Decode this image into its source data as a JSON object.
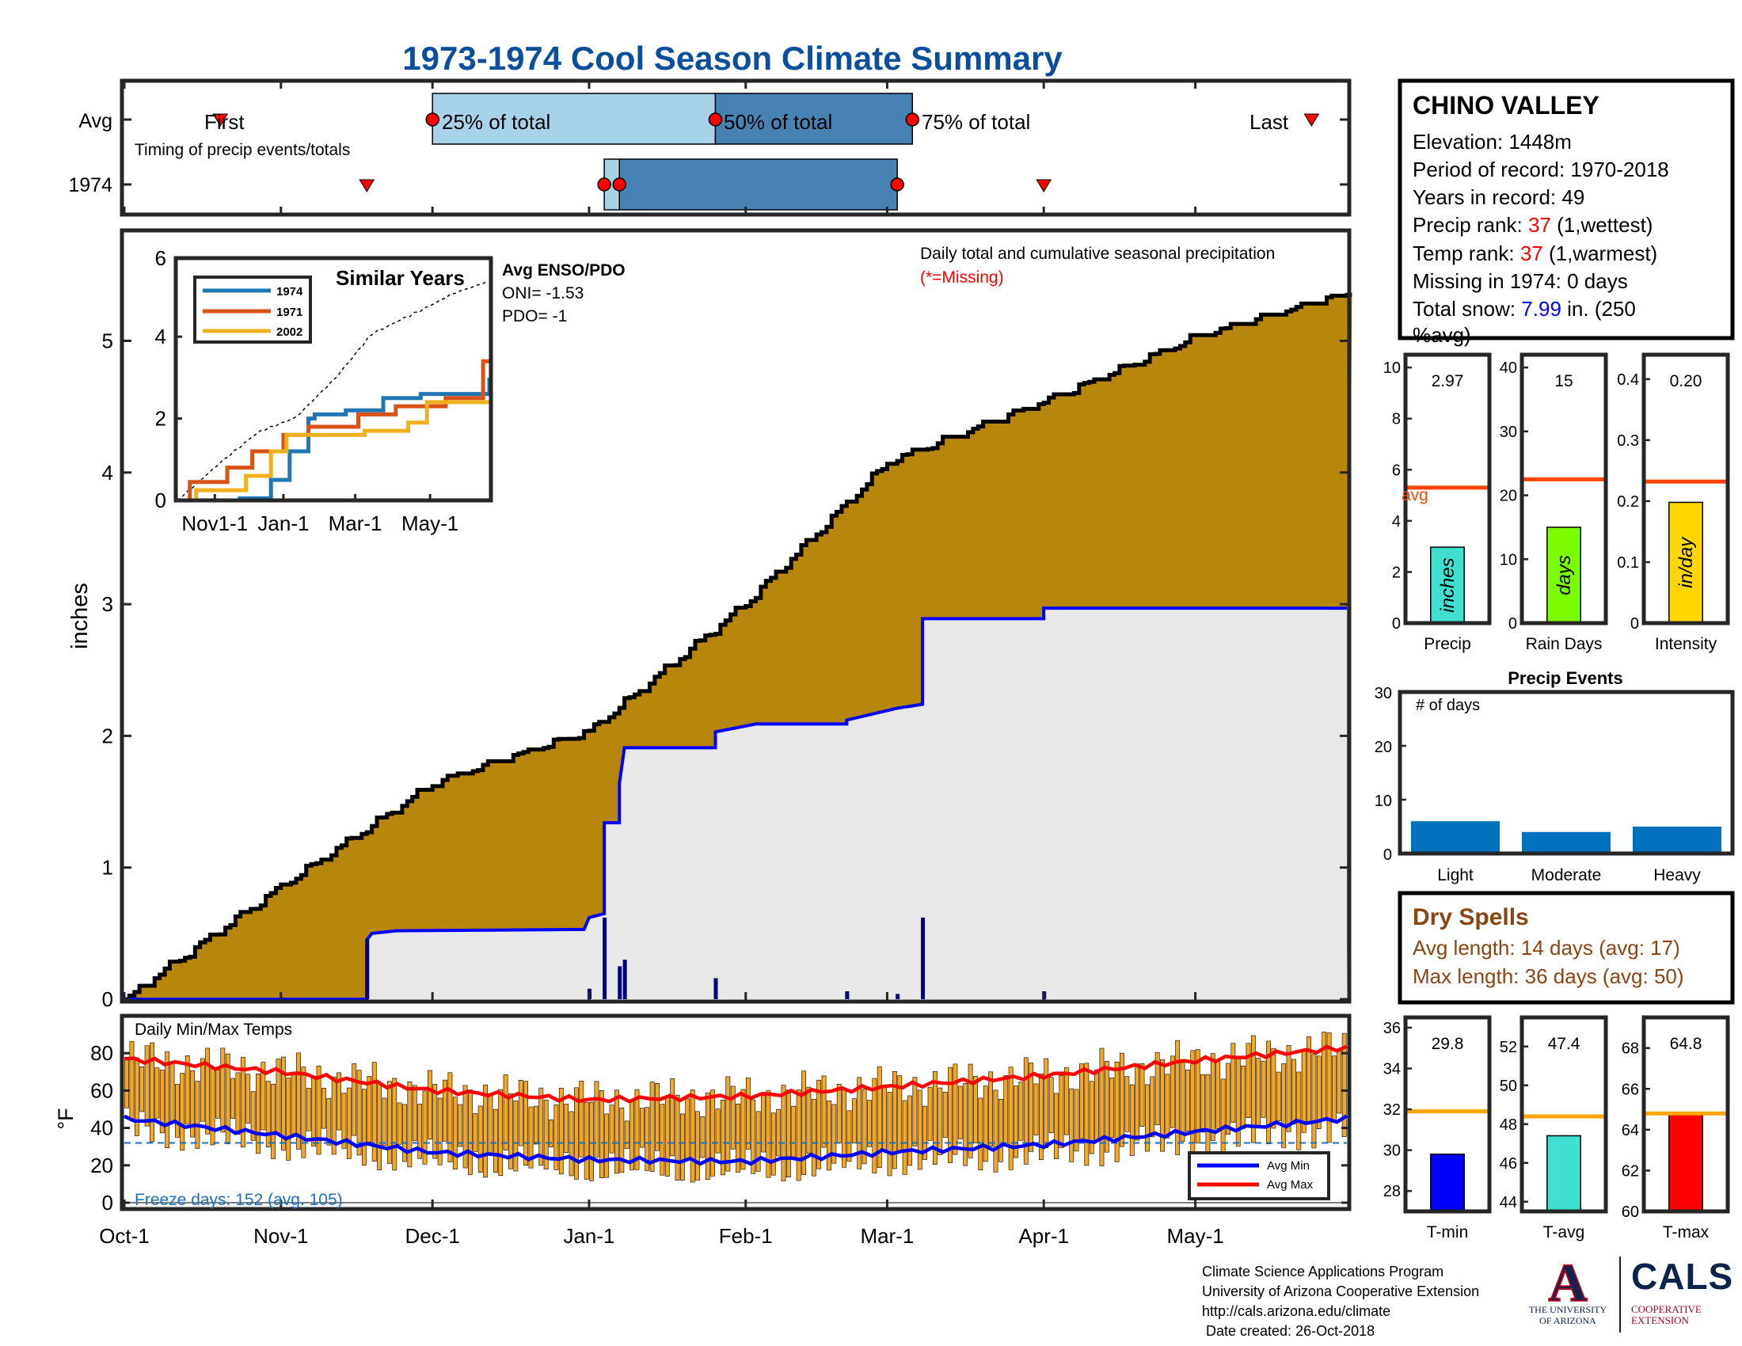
{
  "title": "1973-1974 Cool Season Climate Summary",
  "colors": {
    "title": "#0b4f9c",
    "precip_fill": "#b8860b",
    "avg_fill": "#e8e8e8",
    "avg_line": "#0000ff",
    "daily_bars": "#000080",
    "light_blue": "#a6d3e8",
    "dark_blue": "#4682b4",
    "marker_red": "#ff0000",
    "red_text": "#ff0000",
    "blue_text": "#0000ff",
    "dry_spells": "#8b4513",
    "temp_bars": "#f5a623",
    "avg_max": "#ff0000",
    "avg_min": "#0000ff",
    "freeze_line": "#1f6fbf",
    "avg_bar_line": "#ff4500",
    "temp_avg_line": "#ffa500"
  },
  "timing": {
    "row_labels": [
      "Avg",
      "1974"
    ],
    "subtitle": "Timing of precip events/totals",
    "avg_labels": [
      "First",
      "25% of total",
      "50% of total",
      "75% of total",
      "Last"
    ],
    "avg": {
      "first": "Oct-20",
      "p25": "Dec-01",
      "p50": "Jan-26",
      "p75": "Mar-06",
      "last": "May-24"
    },
    "y1974": {
      "first": "Nov-18",
      "p25": "Jan-04",
      "p50": "Jan-07",
      "p75": "Mar-03",
      "last": "Apr-01"
    }
  },
  "station": {
    "name": "CHINO VALLEY",
    "elevation_line": "Elevation: 1448m",
    "period_line": "Period of record: 1970-2018",
    "years_line": "Years in record: 49",
    "precip_rank_prefix": "Precip rank: ",
    "precip_rank_value": "37",
    "precip_rank_suffix": " (1,wettest)",
    "temp_rank_prefix": "Temp rank: ",
    "temp_rank_value": "37",
    "temp_rank_suffix": " (1,warmest)",
    "missing_line": "Missing in 1974: 0 days",
    "snow_prefix": "Total snow: ",
    "snow_value": "7.99",
    "snow_suffix": " in. (250",
    "snow_line2": "%avg)"
  },
  "main_chart": {
    "ylabel": "inches",
    "yticks": [
      0,
      1,
      2,
      3,
      4,
      5
    ],
    "ylim": [
      0,
      5.8
    ],
    "x_ticks": [
      "Oct-1",
      "Nov-1",
      "Dec-1",
      "Jan-1",
      "Feb-1",
      "Mar-1",
      "Apr-1",
      "May-1"
    ],
    "note": "Daily total and cumulative seasonal precipitation",
    "missing_note": "(*=Missing)"
  },
  "inset": {
    "title": "Similar Years",
    "legend": [
      "1974",
      "1971",
      "2002"
    ],
    "yticks": [
      0,
      2,
      4,
      6
    ],
    "xticks": [
      "Nov1-1",
      "Jan-1",
      "Mar-1",
      "May-1"
    ],
    "enso_title": "Avg ENSO/PDO",
    "oni": "ONI= -1.53",
    "pdo": "PDO= -1"
  },
  "temp_chart": {
    "title": "Daily Min/Max Temps",
    "ylabel": "°F",
    "yticks": [
      0,
      20,
      40,
      60,
      80
    ],
    "freeze_note": "Freeze days: 152 (avg. 105)",
    "legend": [
      "Avg Min",
      "Avg Max"
    ]
  },
  "precip_panels": [
    {
      "label": "Precip",
      "value_text": "2.97",
      "bar_label": "inches",
      "value": 2.97,
      "avg": 5.3,
      "ylim": [
        0,
        10.5
      ],
      "yticks": [
        0,
        2,
        4,
        6,
        8,
        10
      ],
      "color": "#40e0d0",
      "avg_text": "avg"
    },
    {
      "label": "Rain Days",
      "value_text": "15",
      "bar_label": "days",
      "value": 15,
      "avg": 22.5,
      "ylim": [
        0,
        42
      ],
      "yticks": [
        0,
        10,
        20,
        30,
        40
      ],
      "color": "#7cfc00"
    },
    {
      "label": "Intensity",
      "value_text": "0.20",
      "bar_label": "in/day",
      "value": 0.198,
      "avg": 0.232,
      "ylim": [
        0,
        0.44
      ],
      "yticks": [
        0,
        0.1,
        0.2,
        0.3,
        0.4
      ],
      "color": "#ffd700"
    }
  ],
  "precip_events": {
    "title": "Precip Events",
    "ylabel_note": "# of days",
    "categories": [
      "Light",
      "Moderate",
      "Heavy"
    ],
    "values": [
      6,
      4,
      5
    ],
    "yticks": [
      0,
      10,
      20,
      30
    ],
    "ylim": [
      0,
      30
    ]
  },
  "dry_spells": {
    "title": "Dry Spells",
    "avg_line": "Avg length: 14 days (avg: 17)",
    "max_line": "Max length: 36 days (avg: 50)"
  },
  "temp_panels": [
    {
      "label": "T-min",
      "value_text": "29.8",
      "value": 29.8,
      "avg": 31.9,
      "ylim": [
        27,
        36.5
      ],
      "yticks": [
        28,
        30,
        32,
        34,
        36
      ],
      "color": "#0000ff"
    },
    {
      "label": "T-avg",
      "value_text": "47.4",
      "value": 47.4,
      "avg": 48.4,
      "ylim": [
        43.5,
        53.5
      ],
      "yticks": [
        44,
        46,
        48,
        50,
        52
      ],
      "color": "#40e0d0"
    },
    {
      "label": "T-max",
      "value_text": "64.8",
      "value": 64.8,
      "avg": 64.8,
      "ylim": [
        60,
        69.5
      ],
      "yticks": [
        60,
        62,
        64,
        66,
        68
      ],
      "color": "#ff0000"
    }
  ],
  "footer": [
    "Climate Science Applications Program",
    "University of Arizona Cooperative Extension",
    "http://cals.arizona.edu/climate",
    " Date created: 26-Oct-2018"
  ],
  "logo": {
    "ua_line1": "THE UNIVERSITY",
    "ua_line2": "OF ARIZONA",
    "ua_letter": "A",
    "cals": "CALS",
    "cals_sub1": "COOPERATIVE",
    "cals_sub2": "EXTENSION"
  },
  "chart_data": [
    {
      "type": "area",
      "title": "Daily total and cumulative seasonal precipitation",
      "ylabel": "inches",
      "ylim": [
        0,
        5.8
      ],
      "x": [
        "Oct-1",
        "Nov-1",
        "Dec-1",
        "Jan-1",
        "Feb-1",
        "Mar-1",
        "Apr-1",
        "May-1",
        "May-31"
      ],
      "series": [
        {
          "name": "avg cumulative",
          "values": [
            0,
            0.85,
            1.63,
            2.03,
            3.0,
            4.07,
            4.53,
            5.02,
            5.35
          ]
        },
        {
          "name": "1974 cumulative",
          "values": [
            0,
            0,
            0.52,
            0.53,
            2.09,
            2.24,
            2.96,
            2.97,
            2.97
          ]
        }
      ],
      "daily_1974": [
        {
          "date": "Nov-18",
          "value": 0.45
        },
        {
          "date": "Jan-01",
          "value": 0.08
        },
        {
          "date": "Jan-04",
          "value": 0.62
        },
        {
          "date": "Jan-07",
          "value": 0.25
        },
        {
          "date": "Jan-08",
          "value": 0.3
        },
        {
          "date": "Jan-26",
          "value": 0.16
        },
        {
          "date": "Feb-21",
          "value": 0.06
        },
        {
          "date": "Mar-03",
          "value": 0.04
        },
        {
          "date": "Mar-08",
          "value": 0.62
        },
        {
          "date": "Apr-01",
          "value": 0.06
        }
      ]
    },
    {
      "type": "line",
      "title": "Similar Years",
      "x": [
        "Nov1-1",
        "Jan-1",
        "Mar-1",
        "May-1",
        "May-31"
      ],
      "series": [
        {
          "name": "1974",
          "values": [
            0,
            0.5,
            2.2,
            2.9,
            3.0
          ]
        },
        {
          "name": "1971",
          "values": [
            0.5,
            1.2,
            2.2,
            2.9,
            3.4
          ]
        },
        {
          "name": "2002",
          "values": [
            0.2,
            1.8,
            1.8,
            2.6,
            2.6
          ]
        }
      ]
    },
    {
      "type": "bar",
      "title": "Daily Min/Max Temps",
      "ylabel": "°F",
      "ylim": [
        -5,
        95
      ],
      "x": [
        "Oct-1",
        "Nov-1",
        "Dec-1",
        "Jan-1",
        "Feb-1",
        "Mar-1",
        "Apr-1",
        "May-1",
        "May-31"
      ],
      "series": [
        {
          "name": "Avg Max",
          "values": [
            77,
            70,
            60,
            55,
            57,
            62,
            68,
            76,
            83
          ]
        },
        {
          "name": "Avg Min",
          "values": [
            45,
            36,
            27,
            23,
            22,
            27,
            31,
            38,
            45
          ]
        }
      ]
    },
    {
      "type": "bar",
      "title": "Precip Events",
      "categories": [
        "Light",
        "Moderate",
        "Heavy"
      ],
      "values": [
        6,
        4,
        5
      ]
    }
  ]
}
